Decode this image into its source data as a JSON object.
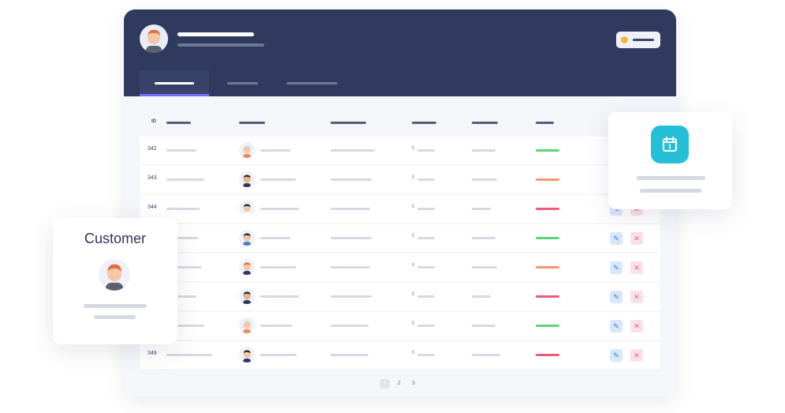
{
  "customer_card": {
    "title": "Customer"
  },
  "table": {
    "id_header": "ID",
    "currency_symbol": "$",
    "rows": [
      {
        "id": "342",
        "status_color": "#5dd37c"
      },
      {
        "id": "343",
        "status_color": "#f5956e"
      },
      {
        "id": "344",
        "status_color": "#f0587a"
      },
      {
        "id": "",
        "status_color": "#5dd37c"
      },
      {
        "id": "",
        "status_color": "#f5956e"
      },
      {
        "id": "",
        "status_color": "#f0587a"
      },
      {
        "id": "",
        "status_color": "#5dd37c"
      },
      {
        "id": "349",
        "status_color": "#f0587a"
      }
    ]
  },
  "pagination": {
    "pages": [
      "1",
      "2",
      "3"
    ],
    "current": "1"
  },
  "icons": {
    "edit": "pencil-icon",
    "delete": "close-icon",
    "calendar": "calendar-icon"
  },
  "colors": {
    "header_bg": "#2f3a5e",
    "active_tab_underline": "#7b6cf6",
    "calendar_accent": "#25c0d7"
  }
}
